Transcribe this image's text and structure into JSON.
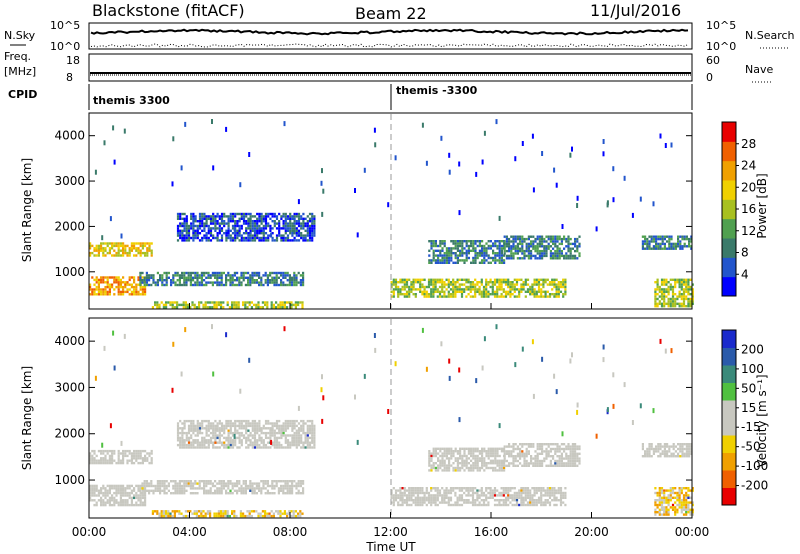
{
  "header": {
    "title": "Blackstone (fitACF)",
    "beam": "Beam 22",
    "date": "11/Jul/2016"
  },
  "strips": {
    "nsky_label": "N.Sky",
    "nsky_ticks": [
      "10^5",
      "10^0"
    ],
    "nsearch_label": "N.Search",
    "nsearch_ticks": [
      "10^5",
      "10^0"
    ],
    "freq_label": "Freq.",
    "freq_unit": "[MHz]",
    "freq_ticks": [
      "18",
      "8"
    ],
    "nave_label": "Nave",
    "nave_ticks": [
      "60",
      "0"
    ],
    "cpid_label": "CPID",
    "cpid_segments": [
      "themis 3300",
      "themis -3300"
    ]
  },
  "chart_data": [
    {
      "type": "heatmap",
      "name": "power",
      "xlabel": "",
      "ylabel": "Slant Range [km]",
      "x_range_hours": [
        0,
        24
      ],
      "ylim": [
        180,
        4500
      ],
      "yticks": [
        "4000",
        "3000",
        "2000",
        "1000"
      ],
      "colorbar_label": "Power [dB]",
      "colorbar_ticks": [
        "28",
        "24",
        "20",
        "16",
        "12",
        "8",
        "4"
      ],
      "colorbar_colors": [
        "#0000ff",
        "#2255cc",
        "#3a7a6a",
        "#50a050",
        "#a8c020",
        "#f0d000",
        "#f0a000",
        "#f06000",
        "#e80000"
      ],
      "features": [
        {
          "start": 0.0,
          "end": 2.2,
          "rmin": 480,
          "rmax": 900,
          "level": 6
        },
        {
          "start": 0.0,
          "end": 2.5,
          "rmin": 1350,
          "rmax": 1650,
          "level": 5
        },
        {
          "start": 2.5,
          "end": 8.5,
          "rmin": 200,
          "rmax": 350,
          "level": 4
        },
        {
          "start": 2.0,
          "end": 8.5,
          "rmin": 700,
          "rmax": 1000,
          "level": 2
        },
        {
          "start": 3.5,
          "end": 9.0,
          "rmin": 1700,
          "rmax": 2300,
          "level": 1
        },
        {
          "start": 12.0,
          "end": 19.0,
          "rmin": 450,
          "rmax": 850,
          "level": 4
        },
        {
          "start": 13.5,
          "end": 16.5,
          "rmin": 1200,
          "rmax": 1700,
          "level": 2
        },
        {
          "start": 16.5,
          "end": 19.5,
          "rmin": 1300,
          "rmax": 1800,
          "level": 2
        },
        {
          "start": 22.0,
          "end": 24.0,
          "rmin": 1500,
          "rmax": 1800,
          "level": 2
        },
        {
          "start": 22.5,
          "end": 24.0,
          "rmin": 250,
          "rmax": 850,
          "level": 4
        }
      ]
    },
    {
      "type": "heatmap",
      "name": "velocity",
      "xlabel": "Time UT",
      "ylabel": "Slant Range [km]",
      "x_range_hours": [
        0,
        24
      ],
      "ylim": [
        180,
        4500
      ],
      "yticks": [
        "4000",
        "3000",
        "2000",
        "1000"
      ],
      "xticks": [
        "00:00",
        "04:00",
        "08:00",
        "12:00",
        "16:00",
        "20:00",
        "00:00"
      ],
      "colorbar_label": "Velocity [m s⁻¹]",
      "colorbar_ticks": [
        "200",
        "100",
        "50",
        "15",
        "-15",
        "-50",
        "-100",
        "-200"
      ],
      "colorbar_colors": [
        "#e80000",
        "#f06000",
        "#f0a000",
        "#f0d000",
        "#c8c8c0",
        "#c8c8c0",
        "#50c040",
        "#3a8a7a",
        "#2a5aaa",
        "#1a2acc"
      ],
      "ground_scatter_color": "#c8c8c0"
    }
  ]
}
